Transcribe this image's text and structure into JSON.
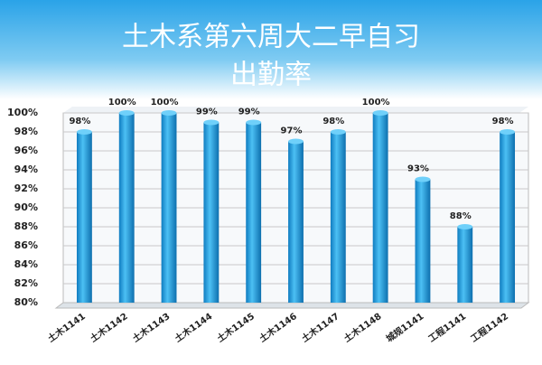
{
  "chart_data": {
    "type": "bar",
    "title": [
      "土木系第六周大二早自习",
      "出勤率"
    ],
    "categories": [
      "土木1141",
      "土木1142",
      "土木1143",
      "土木1144",
      "土木1145",
      "土木1146",
      "土木1147",
      "土木1148",
      "城规1141",
      "工程1141",
      "工程1142"
    ],
    "values": [
      98,
      100,
      100,
      99,
      99,
      97,
      98,
      100,
      93,
      88,
      98
    ],
    "value_labels": [
      "98%",
      "100%",
      "100%",
      "99%",
      "99%",
      "97%",
      "98%",
      "100%",
      "93%",
      "88%",
      "98%"
    ],
    "color": "#1e9de0",
    "ylim": [
      80,
      100
    ],
    "yticks": [
      {
        "value": 80,
        "label": "80%"
      },
      {
        "value": 82,
        "label": "82%"
      },
      {
        "value": 84,
        "label": "84%"
      },
      {
        "value": 86,
        "label": "86%"
      },
      {
        "value": 88,
        "label": "88%"
      },
      {
        "value": 90,
        "label": "90%"
      },
      {
        "value": 92,
        "label": "92%"
      },
      {
        "value": 94,
        "label": "94%"
      },
      {
        "value": 96,
        "label": "96%"
      },
      {
        "value": 98,
        "label": "98%"
      },
      {
        "value": 100,
        "label": "100%"
      }
    ],
    "grid": true
  }
}
